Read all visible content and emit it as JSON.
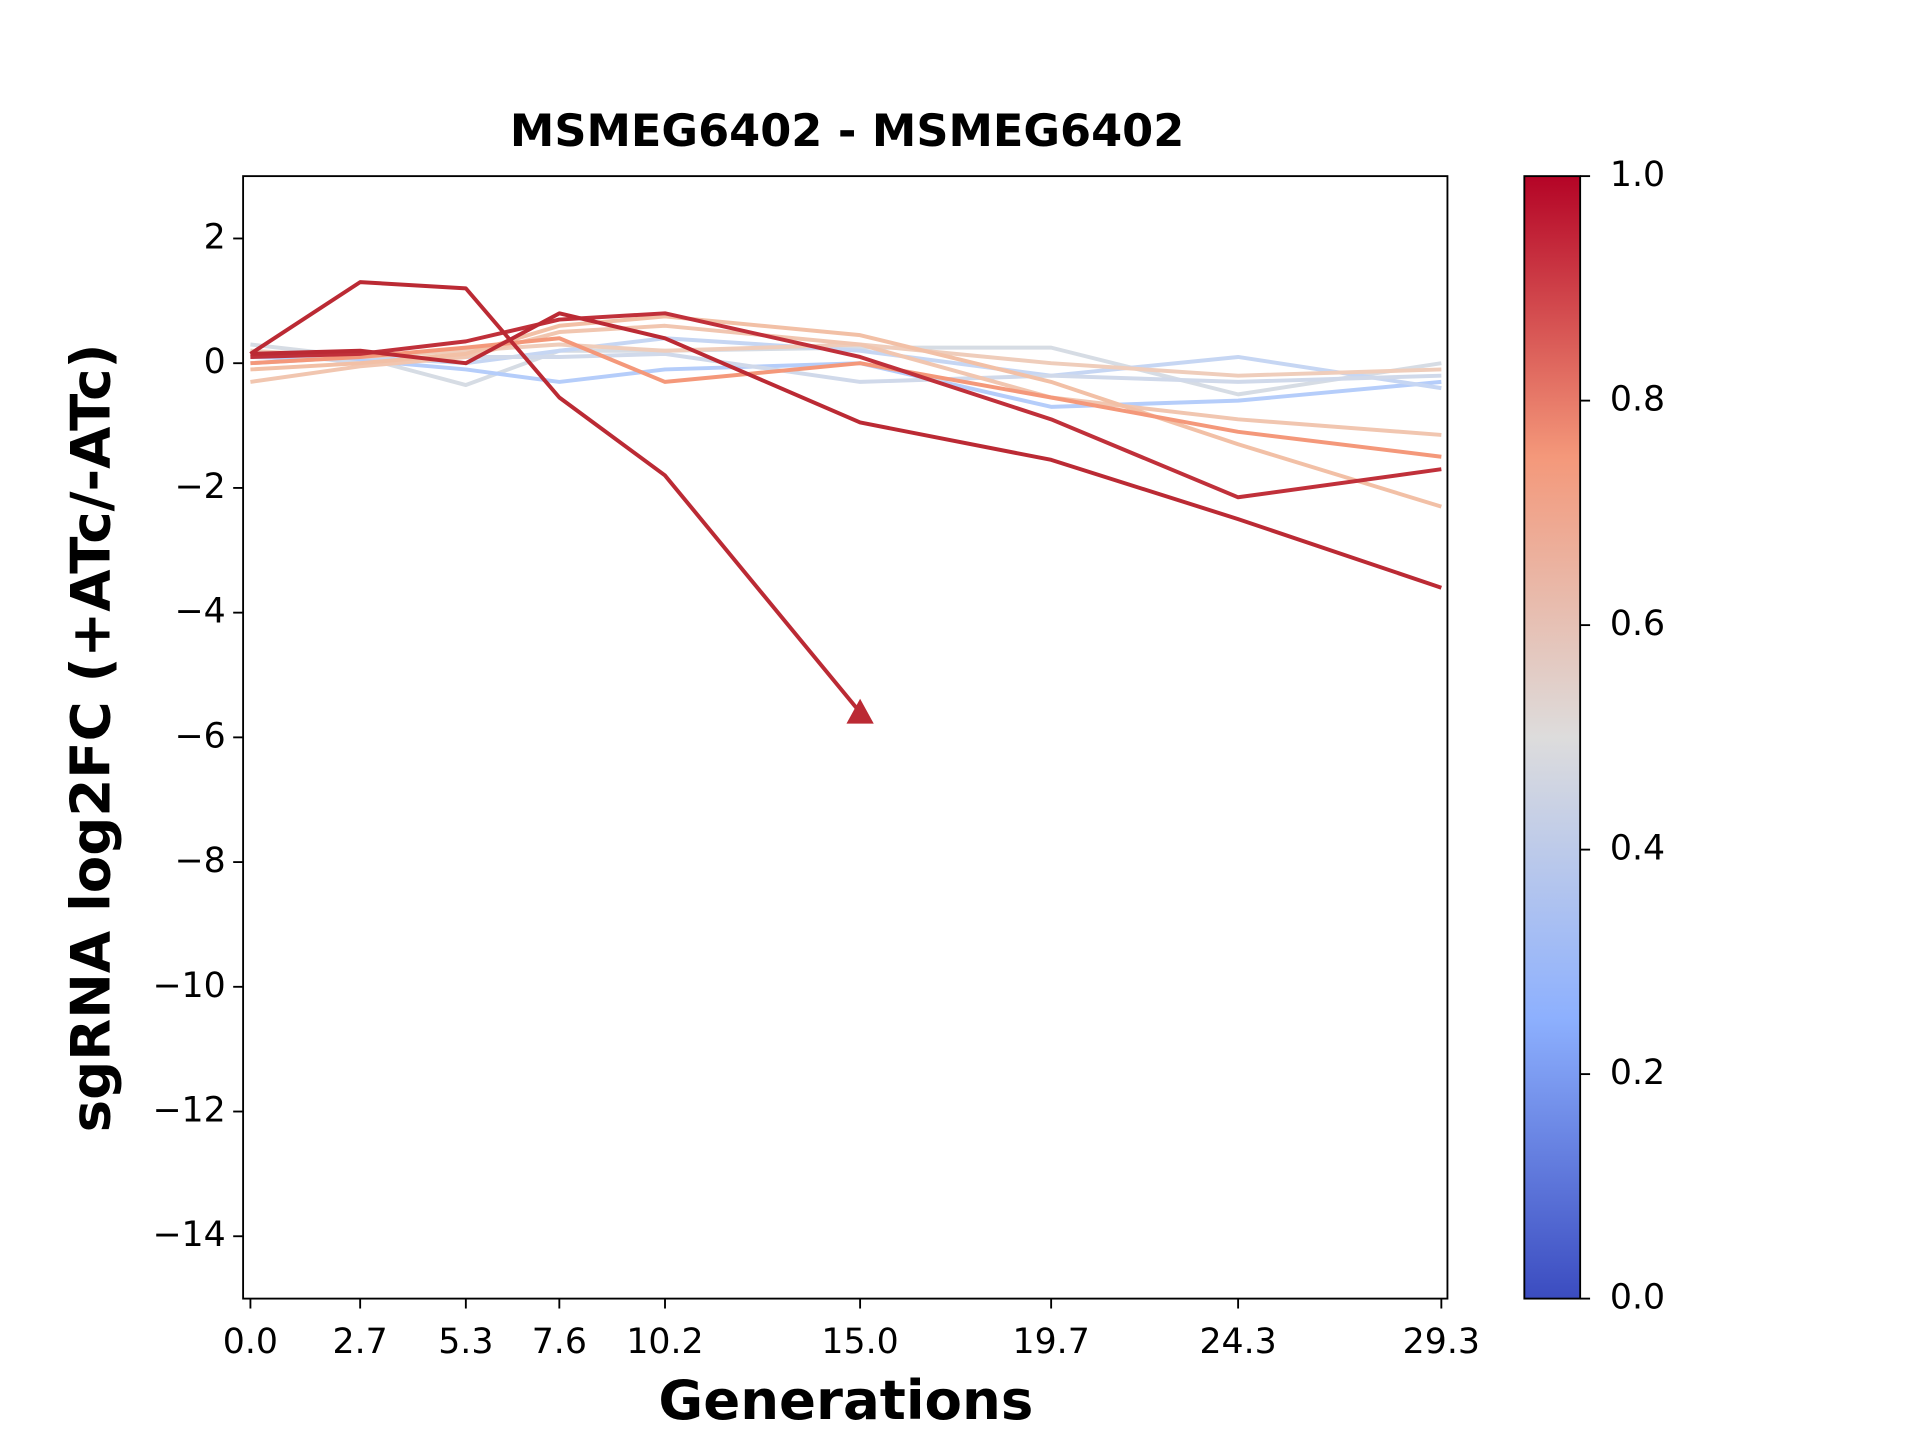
{
  "chart_data": {
    "type": "line",
    "title": "MSMEG6402 - MSMEG6402",
    "xlabel": "Generations",
    "ylabel": "sgRNA log2FC (+ATc/-ATc)",
    "x": [
      0.0,
      2.7,
      5.3,
      7.6,
      10.2,
      15.0,
      19.7,
      24.3,
      29.3
    ],
    "xlim": [
      -0.18,
      29.45
    ],
    "xticks": [
      {
        "value": 0.0,
        "label": "0.0"
      },
      2.7,
      5.3,
      7.6,
      10.2,
      {
        "value": 15.0,
        "label": "15.0"
      },
      19.7,
      24.3,
      29.3
    ],
    "ylim": [
      -15,
      3
    ],
    "yticks": [
      {
        "value": 2,
        "label": "2"
      },
      0,
      {
        "value": -2,
        "label": "−2"
      },
      {
        "value": -4,
        "label": "−4"
      },
      {
        "value": -6,
        "label": "−6"
      },
      {
        "value": -8,
        "label": "−8"
      },
      {
        "value": -10,
        "label": "−10"
      },
      {
        "value": -12,
        "label": "−12"
      },
      {
        "value": -14,
        "label": "−14"
      }
    ],
    "series": [
      {
        "color": "#d6dce4",
        "values": [
          0.3,
          0.1,
          -0.35,
          0.2,
          0.2,
          0.25,
          0.25,
          -0.5,
          0.0
        ]
      },
      {
        "color": "#b5cdfa",
        "values": [
          0.1,
          0.05,
          -0.1,
          -0.3,
          -0.1,
          0.0,
          -0.7,
          -0.6,
          -0.3
        ]
      },
      {
        "color": "#c6d6f3",
        "values": [
          0.0,
          0.1,
          0.0,
          0.2,
          0.4,
          0.2,
          -0.2,
          0.1,
          -0.4
        ]
      },
      {
        "color": "#d0d9ea",
        "values": [
          0.2,
          0.0,
          0.1,
          0.1,
          0.15,
          -0.3,
          -0.2,
          -0.3,
          -0.2
        ]
      },
      {
        "color": "#efcdbb",
        "values": [
          0.2,
          0.1,
          0.2,
          0.3,
          0.2,
          0.3,
          0.0,
          -0.2,
          -0.1
        ]
      },
      {
        "color": "#f1c6b0",
        "values": [
          -0.3,
          -0.05,
          0.1,
          0.5,
          0.6,
          0.3,
          -0.55,
          -0.9,
          -1.15
        ]
      },
      {
        "color": "#f2c0a6",
        "values": [
          -0.1,
          0.0,
          0.15,
          0.6,
          0.75,
          0.45,
          -0.3,
          -1.3,
          -2.3
        ]
      },
      {
        "color": "#f4987a",
        "values": [
          0.0,
          0.1,
          0.25,
          0.4,
          -0.3,
          0.0,
          -0.55,
          -1.1,
          -1.5
        ]
      },
      {
        "color": "#c0303a",
        "values": [
          0.1,
          0.15,
          0.35,
          0.7,
          0.8,
          0.1,
          -0.9,
          -2.15,
          -1.7
        ]
      },
      {
        "color": "#bb2a34",
        "values": [
          0.15,
          0.2,
          0.0,
          0.8,
          0.4,
          -0.95,
          -1.55,
          -2.5,
          -3.6
        ]
      },
      {
        "color": "#bb2a34",
        "values": [
          0.15,
          1.3,
          1.2,
          -0.55,
          -1.8,
          -5.6,
          null,
          null,
          null
        ],
        "end_marker": "triangle"
      }
    ],
    "colorbar": {
      "lim": [
        0,
        1
      ],
      "ticks": [
        {
          "value": 0.0,
          "label": "0.0"
        },
        0.2,
        0.4,
        0.6,
        0.8,
        {
          "value": 1.0,
          "label": "1.0"
        }
      ]
    }
  }
}
